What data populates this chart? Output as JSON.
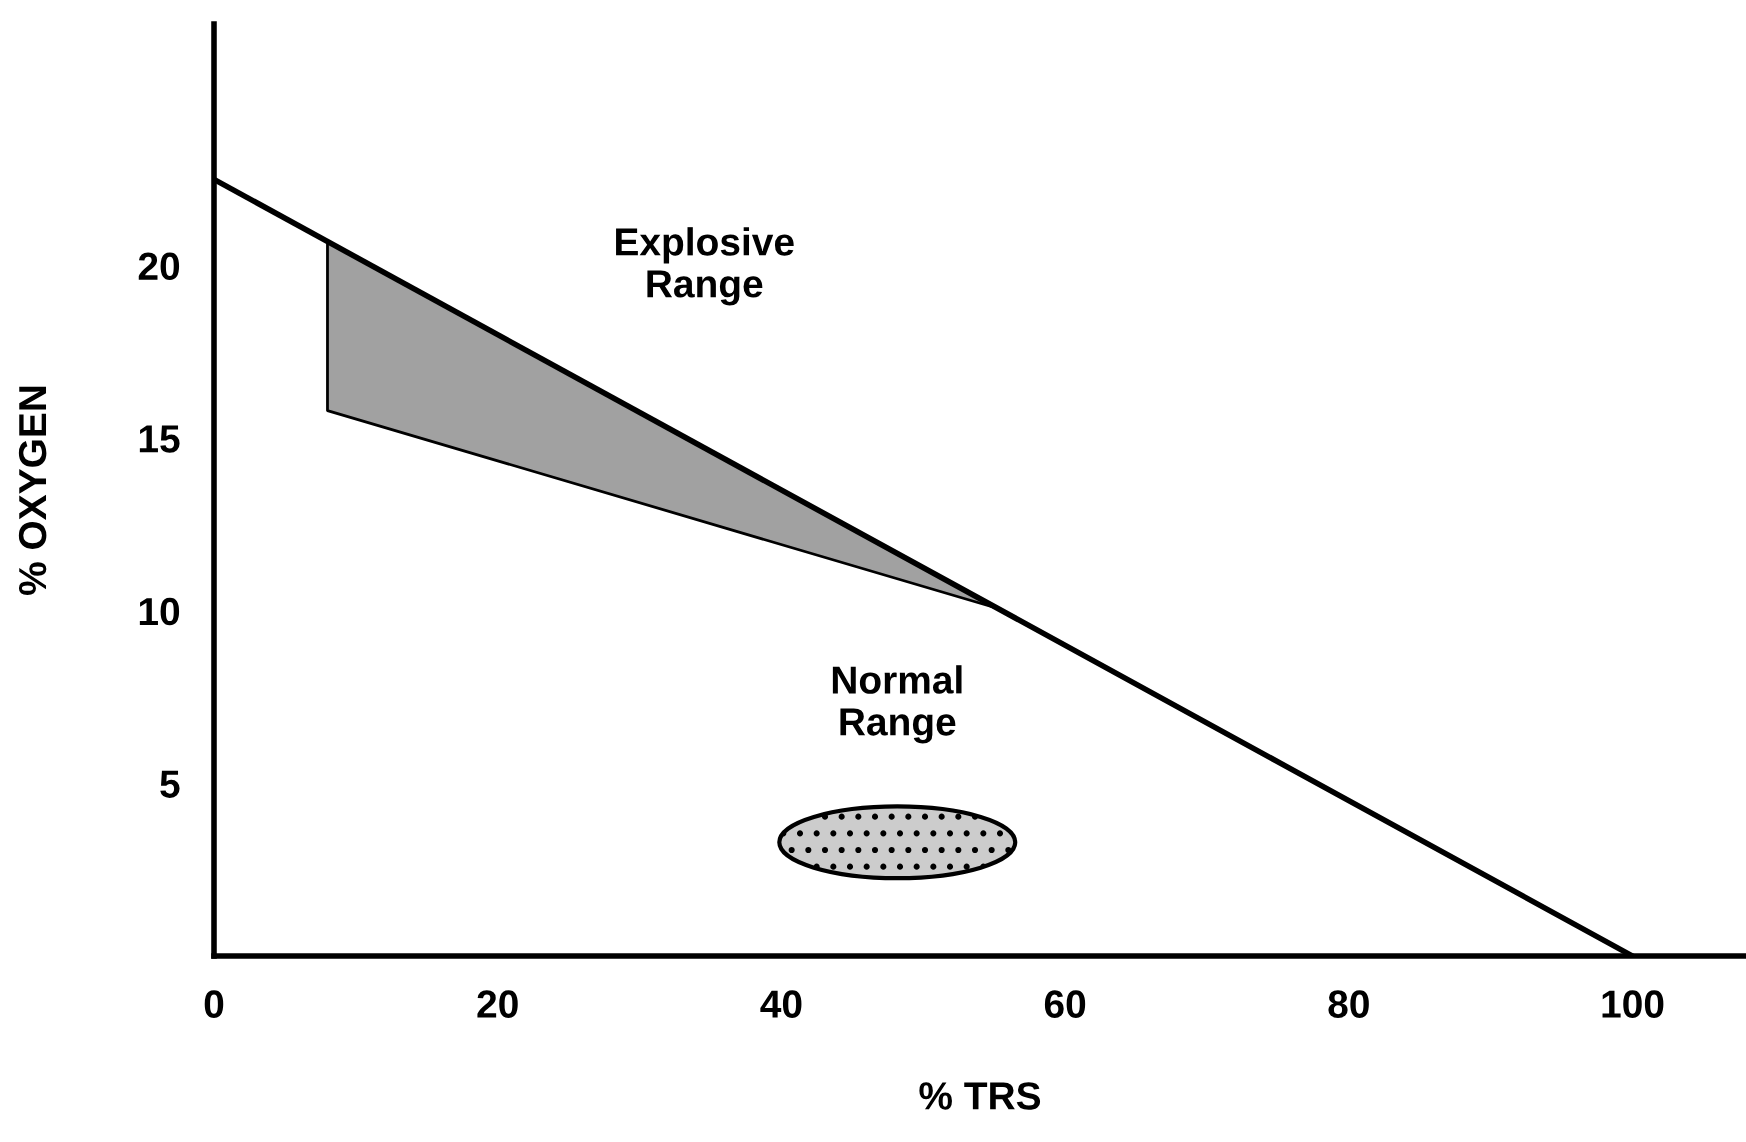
{
  "chart_data": {
    "type": "line",
    "xlabel": "% TRS",
    "ylabel": "% OXYGEN",
    "xlim": [
      0,
      108
    ],
    "ylim": [
      0,
      27
    ],
    "xticks": [
      0,
      20,
      40,
      60,
      80,
      100
    ],
    "yticks": [
      5,
      10,
      15,
      20
    ],
    "grid": false,
    "legend": false,
    "marker": "none",
    "line_style": "solid",
    "series": [
      {
        "color": "#000000",
        "x": [
          0,
          100
        ],
        "values": [
          22.5,
          0
        ]
      },
      {
        "type": "line",
        "color": "#000000",
        "x": [
          8,
          8,
          55
        ],
        "values": [
          20.7,
          15.8,
          10.1
        ],
        "lower": [
          20.7,
          15.8,
          10.1
        ],
        "upper": [
          20.7,
          20.7,
          10.1
        ]
      }
    ],
    "annotations": [
      "Explosive Range",
      "Normal Range"
    ]
  }
}
